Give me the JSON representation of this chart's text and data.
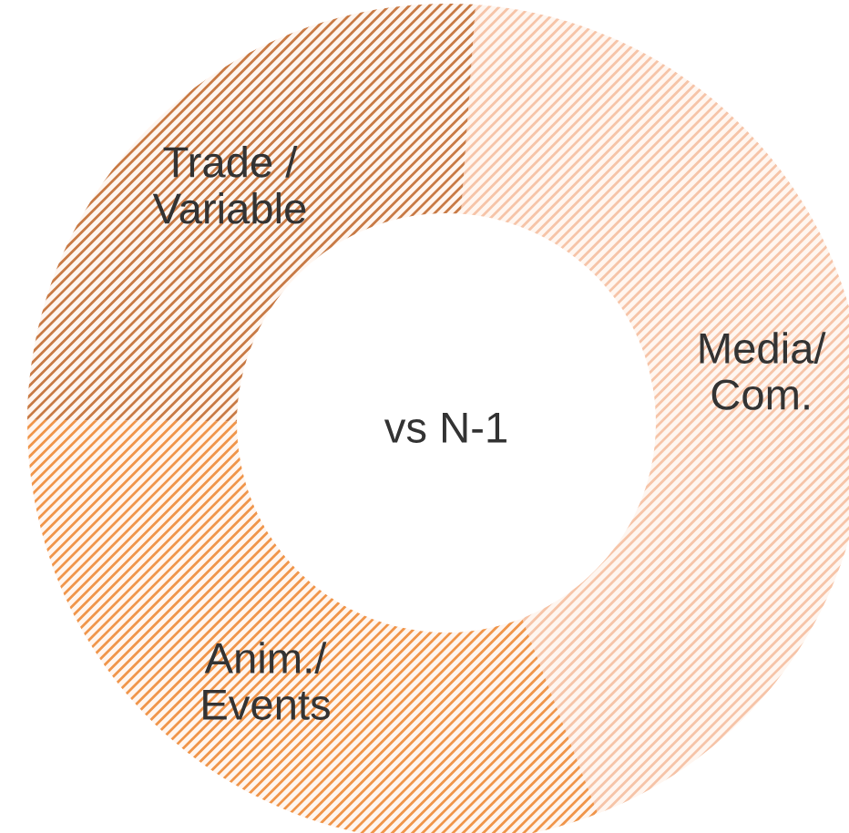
{
  "chart_data": {
    "type": "donut",
    "categories": [
      "Media/\nCom.",
      "Anim./\nEvents",
      "Trade /\nVariable"
    ],
    "values": [
      43,
      31,
      26
    ],
    "colors": [
      "#f6c4a8",
      "#f0954a",
      "#c87a45"
    ],
    "annotations": [
      "vs N-1"
    ]
  }
}
